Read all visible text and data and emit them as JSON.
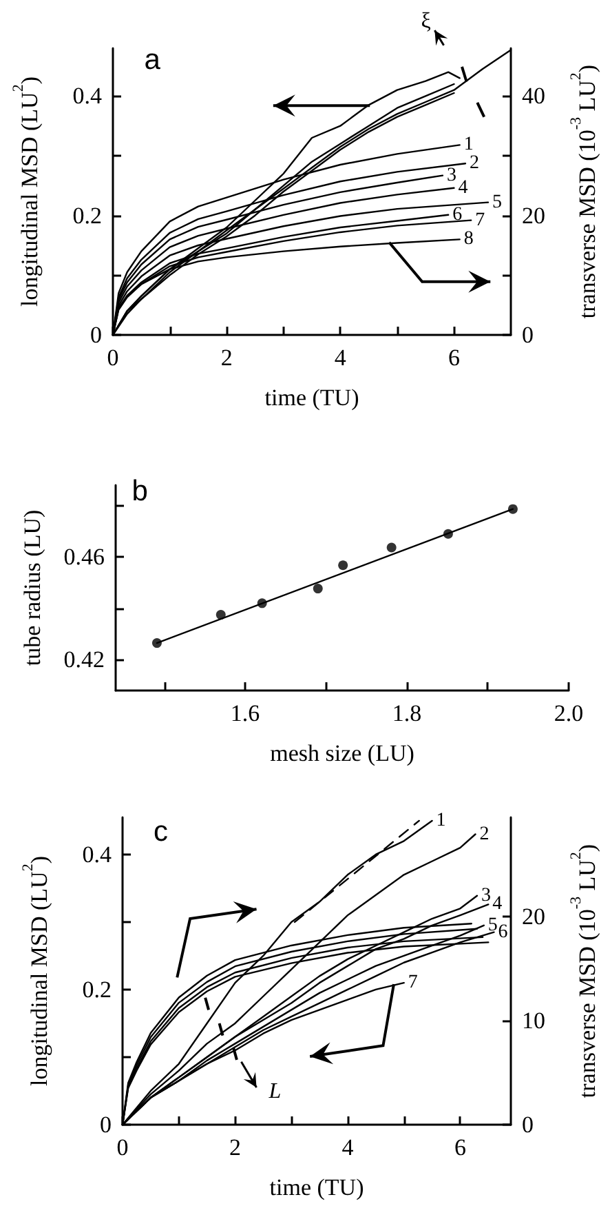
{
  "chart_data": [
    {
      "type": "line",
      "annotations": [
        "a",
        "ξ"
      ],
      "xlabel": "time (TU)",
      "ylabel": "longitudinal MSD (LU$^{2}$)",
      "y2label": "transverse MSD (10$^{-3}$ LU$^{2}$)",
      "marker": "none",
      "line_style": "solid",
      "xlim": [
        0,
        7
      ],
      "xticks": [
        0,
        {
          "value": 1,
          "label": null
        },
        2,
        {
          "value": 3,
          "label": null
        },
        4,
        {
          "value": 5,
          "label": null
        },
        6
      ],
      "ylim": [
        0,
        0.48
      ],
      "yticks": [
        0,
        {
          "value": 0.1,
          "label": null
        },
        0.2,
        {
          "value": 0.3,
          "label": null
        },
        0.4
      ],
      "y2lim": [
        0,
        48
      ],
      "y2ticks": [
        0,
        {
          "value": 10,
          "label": null
        },
        20,
        {
          "value": 30,
          "label": null
        },
        40
      ],
      "series": [
        {
          "color": "#000000",
          "x": [
            0,
            0.25,
            0.5,
            1,
            1.5,
            2,
            2.5,
            3,
            3.5,
            4,
            4.5,
            5,
            5.5,
            6,
            6.5,
            7
          ],
          "values": [
            0,
            0.04,
            0.065,
            0.11,
            0.14,
            0.17,
            0.21,
            0.245,
            0.28,
            0.315,
            0.345,
            0.37,
            0.39,
            0.41,
            0.445,
            0.477
          ]
        },
        {
          "color": "#000000",
          "x": [
            0,
            0.25,
            0.5,
            1,
            1.5,
            2,
            2.5,
            3,
            3.5,
            4,
            4.5,
            5,
            5.5,
            5.9,
            6.1
          ],
          "values": [
            0,
            0.04,
            0.065,
            0.11,
            0.145,
            0.18,
            0.225,
            0.27,
            0.33,
            0.35,
            0.385,
            0.41,
            0.425,
            0.44,
            0.43
          ]
        },
        {
          "color": "#000000",
          "x": [
            0,
            0.25,
            0.5,
            1,
            1.5,
            2,
            2.5,
            3,
            3.5,
            4,
            4.5,
            5,
            5.5,
            6
          ],
          "values": [
            0,
            0.04,
            0.06,
            0.105,
            0.14,
            0.175,
            0.21,
            0.25,
            0.29,
            0.32,
            0.35,
            0.38,
            0.4,
            0.42
          ]
        },
        {
          "color": "#000000",
          "x": [
            0,
            0.25,
            0.5,
            1,
            1.5,
            2,
            2.5,
            3,
            3.5,
            4,
            4.5,
            5,
            5.5,
            6
          ],
          "values": [
            0,
            0.035,
            0.06,
            0.1,
            0.135,
            0.165,
            0.2,
            0.24,
            0.275,
            0.31,
            0.34,
            0.365,
            0.385,
            0.405
          ]
        },
        {
          "name": "1",
          "axis": "y2",
          "color": "#000000",
          "x": [
            0,
            0.1,
            0.25,
            0.5,
            1,
            1.5,
            2,
            3,
            4,
            5,
            6.1
          ],
          "values": [
            0,
            7,
            10.5,
            14,
            19,
            21.5,
            23,
            26,
            28.5,
            30.3,
            31.8
          ]
        },
        {
          "name": "2",
          "axis": "y2",
          "color": "#000000",
          "x": [
            0,
            0.1,
            0.25,
            0.5,
            1,
            1.5,
            2,
            3,
            4,
            5,
            6.2
          ],
          "values": [
            0,
            6.3,
            9.5,
            12.6,
            17.1,
            19.4,
            20.7,
            23.4,
            25.7,
            27.3,
            28.7
          ]
        },
        {
          "name": "3",
          "axis": "y2",
          "color": "#000000",
          "x": [
            0,
            0.1,
            0.25,
            0.5,
            1,
            1.5,
            2,
            3,
            4,
            5,
            5.8
          ],
          "values": [
            0,
            5.9,
            8.8,
            11.8,
            16,
            18.1,
            19.3,
            21.8,
            23.9,
            25.5,
            26.7
          ]
        },
        {
          "name": "4",
          "axis": "y2",
          "color": "#000000",
          "x": [
            0,
            0.1,
            0.25,
            0.5,
            1,
            1.5,
            2,
            3,
            4,
            5,
            6
          ],
          "values": [
            0,
            5.4,
            8.1,
            10.8,
            14.7,
            16.6,
            17.8,
            20.1,
            22.1,
            23.5,
            24.6
          ]
        },
        {
          "name": "5",
          "axis": "y2",
          "color": "#000000",
          "x": [
            0,
            0.1,
            0.25,
            0.5,
            1,
            1.5,
            2,
            3,
            4,
            5,
            6.6
          ],
          "values": [
            0,
            4.9,
            7.3,
            9.8,
            13.3,
            15,
            16.1,
            18.2,
            19.9,
            21.1,
            22.2
          ]
        },
        {
          "name": "6",
          "axis": "y2",
          "color": "#000000",
          "x": [
            0,
            0.1,
            0.25,
            0.5,
            1,
            1.5,
            2,
            3,
            4,
            5,
            5.9
          ],
          "values": [
            0,
            4.4,
            6.6,
            8.8,
            12,
            13.6,
            14.5,
            16.4,
            18,
            19.1,
            20.1
          ]
        },
        {
          "name": "7",
          "axis": "y2",
          "color": "#000000",
          "x": [
            0,
            0.1,
            0.25,
            0.5,
            1,
            1.5,
            2,
            3,
            4,
            5,
            6.3
          ],
          "values": [
            0,
            4.2,
            6.3,
            8.5,
            11.5,
            13,
            13.9,
            15.7,
            17.2,
            18.3,
            19.2
          ]
        },
        {
          "name": "8",
          "axis": "y2",
          "color": "#000000",
          "x": [
            0,
            0.1,
            0.25,
            0.5,
            1,
            1.5,
            2,
            3,
            4,
            5,
            6.1
          ],
          "values": [
            0,
            4.5,
            6.5,
            8.5,
            11,
            12.3,
            13,
            14,
            14.8,
            15.4,
            16
          ]
        }
      ]
    },
    {
      "type": "scatter",
      "annotations": [
        "b"
      ],
      "xlabel": "mesh size (LU)",
      "ylabel": "tube radius (LU)",
      "marker": "circle",
      "xlim": [
        1.44,
        2.0
      ],
      "xticks": [
        {
          "value": 1.5,
          "label": null
        },
        1.6,
        {
          "value": 1.7,
          "label": null
        },
        1.8,
        {
          "value": 1.9,
          "label": null
        },
        {
          "value": 2.0,
          "label": "2.0"
        }
      ],
      "ylim": [
        0.408,
        0.488
      ],
      "yticks": [
        0.42,
        {
          "value": 0.44,
          "label": null
        },
        0.46,
        {
          "value": 0.48,
          "label": null
        }
      ],
      "series": [
        {
          "color": "#000000",
          "x": [
            1.491,
            1.57,
            1.621,
            1.69,
            1.721,
            1.781,
            1.851,
            1.931
          ],
          "values": [
            0.4265,
            0.4375,
            0.442,
            0.4477,
            0.4568,
            0.4637,
            0.469,
            0.4787
          ]
        },
        {
          "type": "line",
          "marker": "none",
          "line_style": "solid",
          "color": "#000000",
          "x": [
            1.491,
            1.931
          ],
          "values": [
            0.4265,
            0.4787
          ]
        }
      ]
    },
    {
      "type": "line",
      "annotations": [
        "c",
        "L"
      ],
      "xlabel": "time (TU)",
      "ylabel": "longitudinal MSD (LU$^{2}$)",
      "y2label": "transverse MSD (10$^{-3}$ LU$^{2}$)",
      "marker": "none",
      "line_style": "solid",
      "xlim": [
        0,
        6.9
      ],
      "xticks": [
        0,
        {
          "value": 1,
          "label": null
        },
        2,
        {
          "value": 3,
          "label": null
        },
        4,
        {
          "value": 5,
          "label": null
        },
        6
      ],
      "ylim": [
        0,
        0.455
      ],
      "yticks": [
        0,
        {
          "value": 0.1,
          "label": null
        },
        0.2,
        {
          "value": 0.3,
          "label": null
        },
        0.4
      ],
      "y2lim": [
        0,
        29.5
      ],
      "y2ticks": [
        0,
        10,
        20
      ],
      "series": [
        {
          "name": "1",
          "color": "#000000",
          "x": [
            0,
            0.5,
            1,
            1.5,
            2,
            2.5,
            3,
            3.5,
            4,
            4.5,
            5,
            5.5
          ],
          "values": [
            0,
            0.05,
            0.09,
            0.15,
            0.21,
            0.25,
            0.3,
            0.33,
            0.37,
            0.4,
            0.42,
            0.45
          ]
        },
        {
          "name": "2",
          "color": "#000000",
          "x": [
            0,
            0.5,
            1,
            1.5,
            2,
            2.5,
            3,
            3.5,
            4,
            4.5,
            5,
            5.5,
            6,
            6.27
          ],
          "values": [
            0,
            0.045,
            0.08,
            0.12,
            0.15,
            0.19,
            0.23,
            0.27,
            0.31,
            0.34,
            0.37,
            0.39,
            0.41,
            0.43
          ]
        },
        {
          "name": "3",
          "color": "#000000",
          "x": [
            0,
            0.5,
            1,
            1.5,
            2,
            2.5,
            3,
            3.5,
            4,
            4.5,
            5,
            5.5,
            6,
            6.3
          ],
          "values": [
            0,
            0.04,
            0.07,
            0.1,
            0.13,
            0.16,
            0.19,
            0.22,
            0.245,
            0.265,
            0.285,
            0.305,
            0.32,
            0.339
          ]
        },
        {
          "name": "4",
          "color": "#000000",
          "x": [
            0,
            0.5,
            1,
            1.5,
            2,
            2.5,
            3,
            3.5,
            4,
            4.5,
            5,
            5.5,
            6,
            6.5
          ],
          "values": [
            0,
            0.04,
            0.07,
            0.1,
            0.13,
            0.155,
            0.18,
            0.21,
            0.235,
            0.26,
            0.275,
            0.295,
            0.31,
            0.326
          ]
        },
        {
          "name": "5",
          "color": "#000000",
          "x": [
            0,
            0.5,
            1,
            1.5,
            2,
            2.5,
            3,
            3.5,
            4,
            4.5,
            5,
            5.5,
            6,
            6.42
          ],
          "values": [
            0,
            0.04,
            0.065,
            0.095,
            0.12,
            0.145,
            0.17,
            0.195,
            0.215,
            0.235,
            0.25,
            0.265,
            0.28,
            0.295
          ]
        },
        {
          "name": "6",
          "color": "#000000",
          "x": [
            0,
            0.5,
            1,
            1.5,
            2,
            2.5,
            3,
            3.5,
            4,
            4.5,
            5,
            5.5,
            6,
            6.6
          ],
          "values": [
            0,
            0.04,
            0.065,
            0.09,
            0.115,
            0.14,
            0.16,
            0.18,
            0.2,
            0.22,
            0.24,
            0.255,
            0.27,
            0.285
          ]
        },
        {
          "name": "7",
          "color": "#000000",
          "x": [
            0,
            0.5,
            1,
            1.5,
            2,
            2.5,
            3,
            3.5,
            4,
            4.5,
            5
          ],
          "values": [
            0,
            0.04,
            0.065,
            0.09,
            0.11,
            0.135,
            0.155,
            0.17,
            0.185,
            0.2,
            0.21
          ]
        },
        {
          "line_style": "dashed",
          "color": "#000000",
          "x": [
            3.06,
            5.27
          ],
          "values": [
            0.3,
            0.45
          ]
        },
        {
          "axis": "y2",
          "color": "#000000",
          "x": [
            0,
            0.1,
            0.25,
            0.5,
            1,
            1.5,
            2,
            3,
            4,
            5,
            6.2
          ],
          "values": [
            0,
            4,
            6,
            8.8,
            12.2,
            14.3,
            15.8,
            17.2,
            18.2,
            18.9,
            19.3
          ]
        },
        {
          "axis": "y2",
          "color": "#000000",
          "x": [
            0,
            0.1,
            0.25,
            0.5,
            1,
            1.5,
            2,
            3,
            4,
            5,
            6.3
          ],
          "values": [
            0,
            3.8,
            5.7,
            8.4,
            11.7,
            13.7,
            15.2,
            16.6,
            17.6,
            18.3,
            18.8
          ]
        },
        {
          "axis": "y2",
          "color": "#000000",
          "x": [
            0,
            0.1,
            0.25,
            0.5,
            1,
            1.5,
            2,
            3,
            4,
            5,
            6.4
          ],
          "values": [
            0,
            3.6,
            5.4,
            8,
            11.2,
            13.2,
            14.6,
            16,
            17,
            17.6,
            18
          ]
        },
        {
          "axis": "y2",
          "color": "#000000",
          "x": [
            0,
            0.1,
            0.25,
            0.5,
            1,
            1.5,
            2,
            3,
            4,
            5,
            6.5
          ],
          "values": [
            0,
            3.5,
            5.2,
            7.7,
            10.8,
            12.8,
            14.2,
            15.5,
            16.5,
            17.1,
            17.5
          ]
        }
      ]
    }
  ]
}
